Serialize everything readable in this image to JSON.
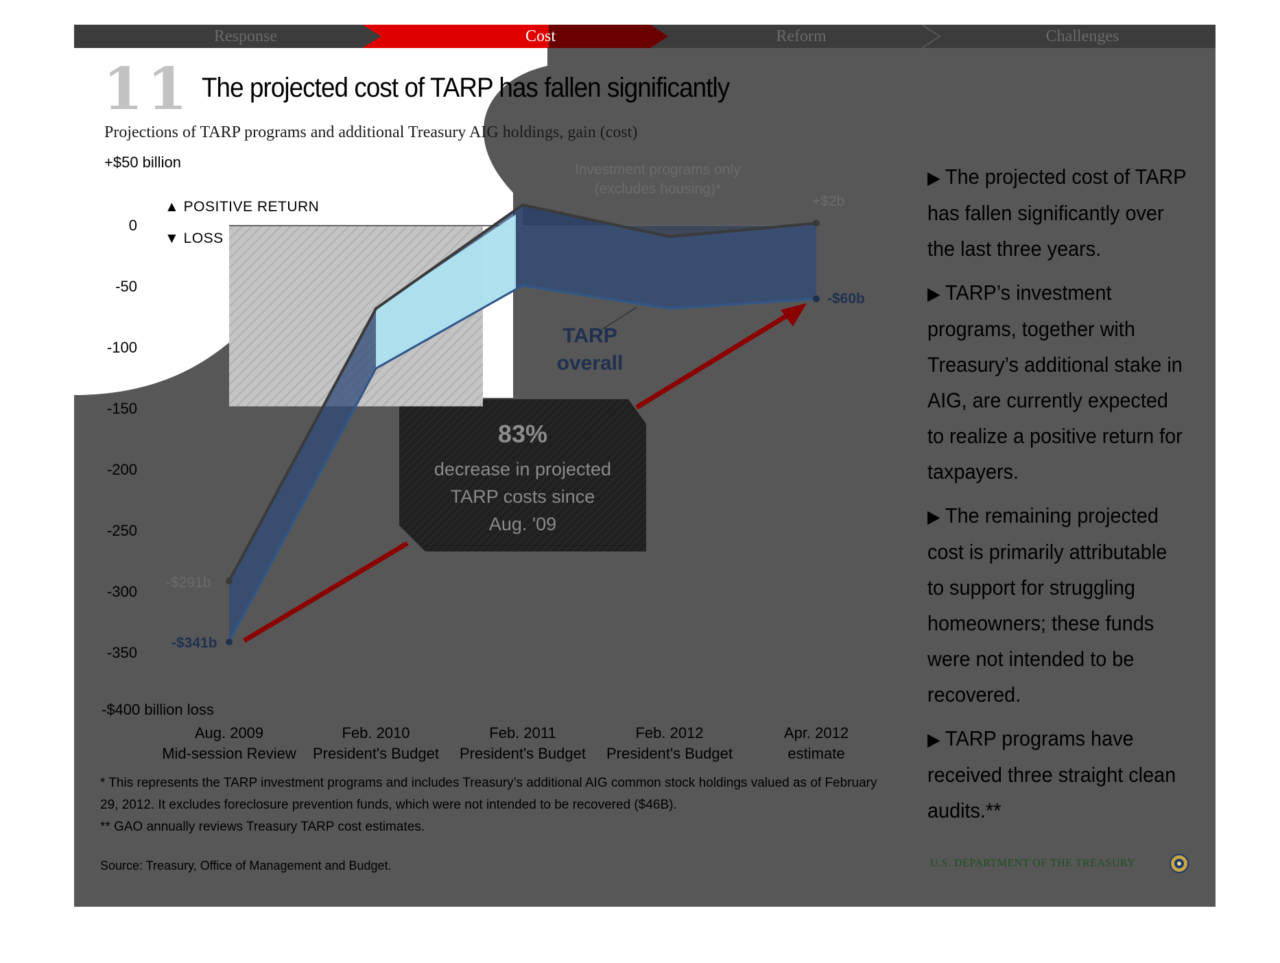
{
  "nav": {
    "tabs": [
      {
        "label": "Response"
      },
      {
        "label": "Cost",
        "active": true
      },
      {
        "label": "Reform"
      },
      {
        "label": "Challenges"
      }
    ],
    "active_color": "#e00000"
  },
  "slide": {
    "number": "11",
    "title": "The projected cost of TARP has fallen significantly"
  },
  "chart_data": {
    "type": "line",
    "subtitle": "Projections of TARP programs and additional Treasury AIG holdings, gain (cost)",
    "y_axis": {
      "top_label": "+$50 billion",
      "bottom_label": "-$400 billion loss",
      "ticks": [
        "0",
        "-50",
        "-100",
        "-150",
        "-200",
        "-250",
        "-300",
        "-350"
      ],
      "ylim": [
        -400,
        50
      ]
    },
    "legend": {
      "positive": "POSITIVE RETURN",
      "negative": "LOSS"
    },
    "categories": [
      {
        "line1": "Aug. 2009",
        "line2": "Mid-session Review"
      },
      {
        "line1": "Feb. 2010",
        "line2": "President's Budget"
      },
      {
        "line1": "Feb. 2011",
        "line2": "President's Budget"
      },
      {
        "line1": "Feb. 2012",
        "line2": "President's Budget"
      },
      {
        "line1": "Apr. 2012",
        "line2": "estimate"
      }
    ],
    "series": [
      {
        "name": "Investment programs only (excludes housing)*",
        "values": [
          -291,
          -68,
          17,
          -9,
          2
        ],
        "color": "#3a3a3a"
      },
      {
        "name": "TARP overall",
        "values": [
          -341,
          -117,
          -49,
          -68,
          -60
        ],
        "color": "#1f3050"
      }
    ],
    "annotations": {
      "investment_label_line1": "Investment programs only",
      "investment_label_line2": "(excludes housing)*",
      "start_investment": "-$291b",
      "start_tarp": "-$341b",
      "end_investment": "+$2b",
      "end_tarp": "-$60b",
      "tarp_overall_line1": "TARP",
      "tarp_overall_line2": "overall"
    },
    "callout": {
      "percent": "83%",
      "line1": "decrease in projected",
      "line2": "TARP costs since",
      "line3": "Aug. '09"
    }
  },
  "bullets": [
    "The projected cost of TARP has fallen significantly over the last three years.",
    "TARP’s investment programs, together with Treasury’s additional stake in AIG,  are currently expected to realize a positive return for taxpayers.",
    "The remaining projected cost is primarily attributable to support for struggling homeowners; these funds were not intended to be recovered.",
    "TARP programs have received three straight clean audits.**"
  ],
  "footnotes": {
    "note1_line1": "* This represents the TARP investment programs and includes Treasury’s additional AIG common stock holdings valued as of February",
    "note1_line2": "29, 2012. It excludes foreclosure prevention funds, which were not intended to be recovered ($46B).",
    "note2": "** GAO annually reviews Treasury TARP cost estimates.",
    "source": "Source: Treasury, Office of Management and Budget."
  },
  "footer": {
    "department": "U.S. DEPARTMENT OF THE TREASURY",
    "seal_icon": "treasury-seal-icon"
  }
}
